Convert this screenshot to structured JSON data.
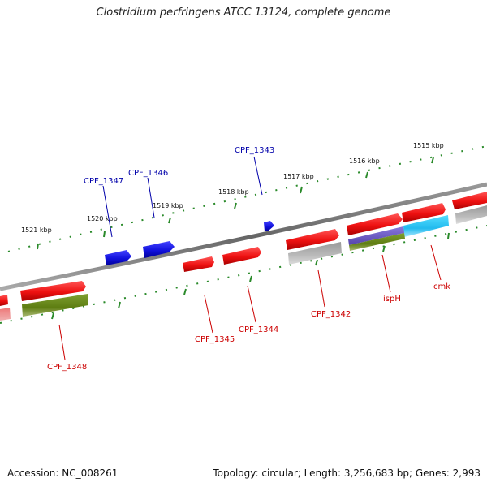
{
  "title": "Clostridium perfringens ATCC 13124, complete genome",
  "footer": {
    "accession": "Accession: NC_008261",
    "summary": "Topology: circular; Length: 3,256,683 bp; Genes: 2,993"
  },
  "colors": {
    "forward_cds": "#ee1111",
    "reverse_cds": "#1111dd",
    "cog_olive": "#6a8a1a",
    "cog_grey": "#aaaaaa",
    "cog_purple": "#7766cc",
    "cog_cyan": "#22bbee",
    "backbone": "#777777",
    "ticks": "#2a8a2a",
    "label_red": "#cc0000",
    "label_blue": "#0000aa"
  },
  "ticks": [
    {
      "label": "1515 kbp"
    },
    {
      "label": "1516 kbp"
    },
    {
      "label": "1517 kbp"
    },
    {
      "label": "1518 kbp"
    },
    {
      "label": "1519 kbp"
    },
    {
      "label": "1520 kbp"
    },
    {
      "label": "1521 kbp"
    }
  ],
  "gene_labels": [
    {
      "name": "CPF_1343",
      "strand": "reverse"
    },
    {
      "name": "CPF_1346",
      "strand": "reverse"
    },
    {
      "name": "CPF_1347",
      "strand": "reverse"
    },
    {
      "name": "CPF_1342",
      "strand": "forward"
    },
    {
      "name": "ispH",
      "strand": "forward"
    },
    {
      "name": "cmk",
      "strand": "forward"
    },
    {
      "name": "CPF_1344",
      "strand": "forward"
    },
    {
      "name": "CPF_1345",
      "strand": "forward"
    },
    {
      "name": "CPF_1348",
      "strand": "forward"
    }
  ]
}
